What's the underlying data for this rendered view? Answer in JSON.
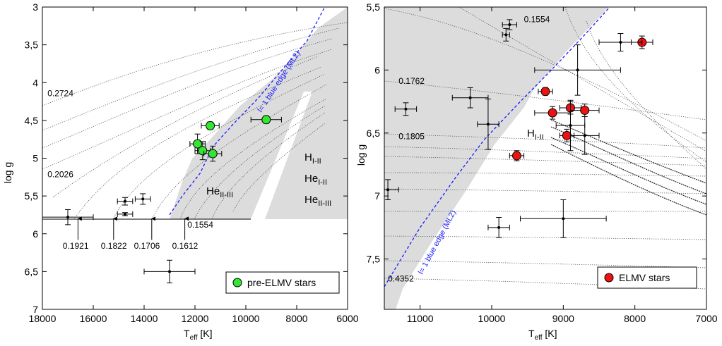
{
  "chart_data": [
    {
      "type": "scatter",
      "xlabel": "T",
      "xlabel_sub": "eff",
      "xlabel_unit": " [K]",
      "ylabel": "log g",
      "xlim": [
        18000,
        6000
      ],
      "ylim": [
        3,
        7
      ],
      "x_ticks": [
        18000,
        16000,
        14000,
        12000,
        10000,
        8000,
        6000
      ],
      "x_tick_labels": [
        "18000",
        "16000",
        "14000",
        "12000",
        "10000",
        "8000",
        "6000"
      ],
      "y_ticks": [
        3,
        3.5,
        4,
        4.5,
        5,
        5.5,
        6,
        6.5,
        7
      ],
      "y_tick_labels": [
        "3",
        "3,5",
        "4",
        "4,5",
        "5",
        "5,5",
        "6",
        "6,5",
        "7"
      ],
      "track_labels": [
        {
          "text": "0.2724",
          "x": 17800,
          "y": 4.18
        },
        {
          "text": "0.2026",
          "x": 17800,
          "y": 5.25
        },
        {
          "text": "0.1921",
          "x": 17200,
          "y": 6.2
        },
        {
          "text": "0.1822",
          "x": 15700,
          "y": 6.2
        },
        {
          "text": "0.1706",
          "x": 14400,
          "y": 6.2
        },
        {
          "text": "0.1612",
          "x": 12900,
          "y": 6.2
        },
        {
          "text": "0.1554",
          "x": 12300,
          "y": 5.92
        }
      ],
      "arrows_x": [
        16600,
        15200,
        13700,
        12400
      ],
      "blue_edge_label": "l= 1 blue edge (ML2)",
      "blue_edge": [
        [
          13000,
          5.75
        ],
        [
          12500,
          5.5
        ],
        [
          11800,
          5.2
        ],
        [
          11300,
          4.85
        ],
        [
          10500,
          4.55
        ],
        [
          9500,
          4.2
        ],
        [
          8500,
          3.8
        ],
        [
          7600,
          3.45
        ],
        [
          6900,
          3.0
        ]
      ],
      "region_labels": {
        "He_II_III": {
          "base": "He",
          "sub": "II-III"
        },
        "H_I_II": {
          "base": "H",
          "sub": "I-II"
        },
        "He_I_II": {
          "base": "He",
          "sub": "I-II"
        },
        "He_II_III_right": {
          "base": "He",
          "sub": "II-III"
        }
      },
      "series": [
        {
          "name": "pre-ELMV stars",
          "color": "#33e633",
          "points": [
            {
              "x": 11400,
              "y": 4.57,
              "xerr": 350,
              "yerr": 0.05
            },
            {
              "x": 9200,
              "y": 4.49,
              "xerr": 600,
              "yerr": 0.05
            },
            {
              "x": 11900,
              "y": 4.81,
              "xerr": 300,
              "yerr": 0.13
            },
            {
              "x": 11700,
              "y": 4.9,
              "xerr": 300,
              "yerr": 0.12
            },
            {
              "x": 11300,
              "y": 4.94,
              "xerr": 350,
              "yerr": 0.1
            }
          ]
        },
        {
          "name": "",
          "color": "#000000",
          "points": [
            {
              "x": 17000,
              "y": 5.78,
              "xerr": 1000,
              "yerr": 0.1
            },
            {
              "x": 14750,
              "y": 5.57,
              "xerr": 300,
              "yerr": 0.05
            },
            {
              "x": 14050,
              "y": 5.54,
              "xerr": 300,
              "yerr": 0.07
            },
            {
              "x": 14750,
              "y": 5.74,
              "xerr": 300,
              "yerr": 0.02
            },
            {
              "x": 13000,
              "y": 6.5,
              "xerr": 1000,
              "yerr": 0.15
            }
          ]
        }
      ],
      "legend": {
        "label": "pre-ELMV stars",
        "placement": "bottom-right"
      }
    },
    {
      "type": "scatter",
      "xlabel": "T",
      "xlabel_sub": "eff",
      "xlabel_unit": " [K]",
      "ylabel": "log g",
      "xlim": [
        11500,
        7000
      ],
      "ylim": [
        5.5,
        7.9
      ],
      "x_ticks": [
        11000,
        10000,
        9000,
        8000,
        7000
      ],
      "x_tick_labels": [
        "11000",
        "10000",
        "9000",
        "8000",
        "7000"
      ],
      "y_ticks": [
        5.5,
        6,
        6.5,
        7,
        7.5
      ],
      "y_tick_labels": [
        "5,5",
        "6",
        "6,5",
        "7",
        "7,5"
      ],
      "track_labels": [
        {
          "text": "0.1554",
          "x": 9550,
          "y": 5.62
        },
        {
          "text": "0.1762",
          "x": 11300,
          "y": 6.11
        },
        {
          "text": "0.1805",
          "x": 11300,
          "y": 6.55
        },
        {
          "text": "0.4352",
          "x": 11450,
          "y": 7.68
        }
      ],
      "blue_edge_label": "l= 1 blue edge (ML2)",
      "blue_edge": [
        [
          11500,
          7.72
        ],
        [
          11000,
          7.25
        ],
        [
          10500,
          6.85
        ],
        [
          10100,
          6.55
        ],
        [
          9850,
          6.4
        ],
        [
          9600,
          6.25
        ],
        [
          9200,
          6.02
        ],
        [
          8700,
          5.72
        ],
        [
          8350,
          5.5
        ]
      ],
      "region_labels": {
        "H_I_II": {
          "base": "H",
          "sub": "I-II"
        }
      },
      "series": [
        {
          "name": "ELMV stars",
          "color": "#ee1111",
          "points": [
            {
              "x": 7900,
              "y": 5.78,
              "xerr": 150,
              "yerr": 0.05
            },
            {
              "x": 9250,
              "y": 6.17,
              "xerr": 100,
              "yerr": 0.03
            },
            {
              "x": 8900,
              "y": 6.3,
              "xerr": 150,
              "yerr": 0.05
            },
            {
              "x": 9150,
              "y": 6.34,
              "xerr": 250,
              "yerr": 0.05
            },
            {
              "x": 8700,
              "y": 6.32,
              "xerr": 200,
              "yerr": 0.05
            },
            {
              "x": 8950,
              "y": 6.52,
              "xerr": 100,
              "yerr": 0.05
            },
            {
              "x": 9650,
              "y": 6.68,
              "xerr": 100,
              "yerr": 0.04
            }
          ]
        },
        {
          "name": "",
          "color": "#000000",
          "points": [
            {
              "x": 9750,
              "y": 5.64,
              "xerr": 100,
              "yerr": 0.04
            },
            {
              "x": 9800,
              "y": 5.72,
              "xerr": 50,
              "yerr": 0.05
            },
            {
              "x": 8200,
              "y": 5.78,
              "xerr": 300,
              "yerr": 0.07
            },
            {
              "x": 8800,
              "y": 6.0,
              "xerr": 600,
              "yerr": 0.2
            },
            {
              "x": 10300,
              "y": 6.22,
              "xerr": 250,
              "yerr": 0.08
            },
            {
              "x": 11200,
              "y": 6.31,
              "xerr": 150,
              "yerr": 0.05
            },
            {
              "x": 10050,
              "y": 6.43,
              "xerr": 150,
              "yerr": 0.2
            },
            {
              "x": 8900,
              "y": 6.44,
              "xerr": 200,
              "yerr": 0.2
            },
            {
              "x": 8700,
              "y": 6.52,
              "xerr": 200,
              "yerr": 0.15
            },
            {
              "x": 11450,
              "y": 6.95,
              "xerr": 150,
              "yerr": 0.08
            },
            {
              "x": 9000,
              "y": 7.18,
              "xerr": 600,
              "yerr": 0.15
            },
            {
              "x": 9900,
              "y": 7.25,
              "xerr": 150,
              "yerr": 0.08
            }
          ]
        }
      ],
      "legend": {
        "label": "ELMV stars",
        "placement": "bottom-right"
      }
    }
  ]
}
